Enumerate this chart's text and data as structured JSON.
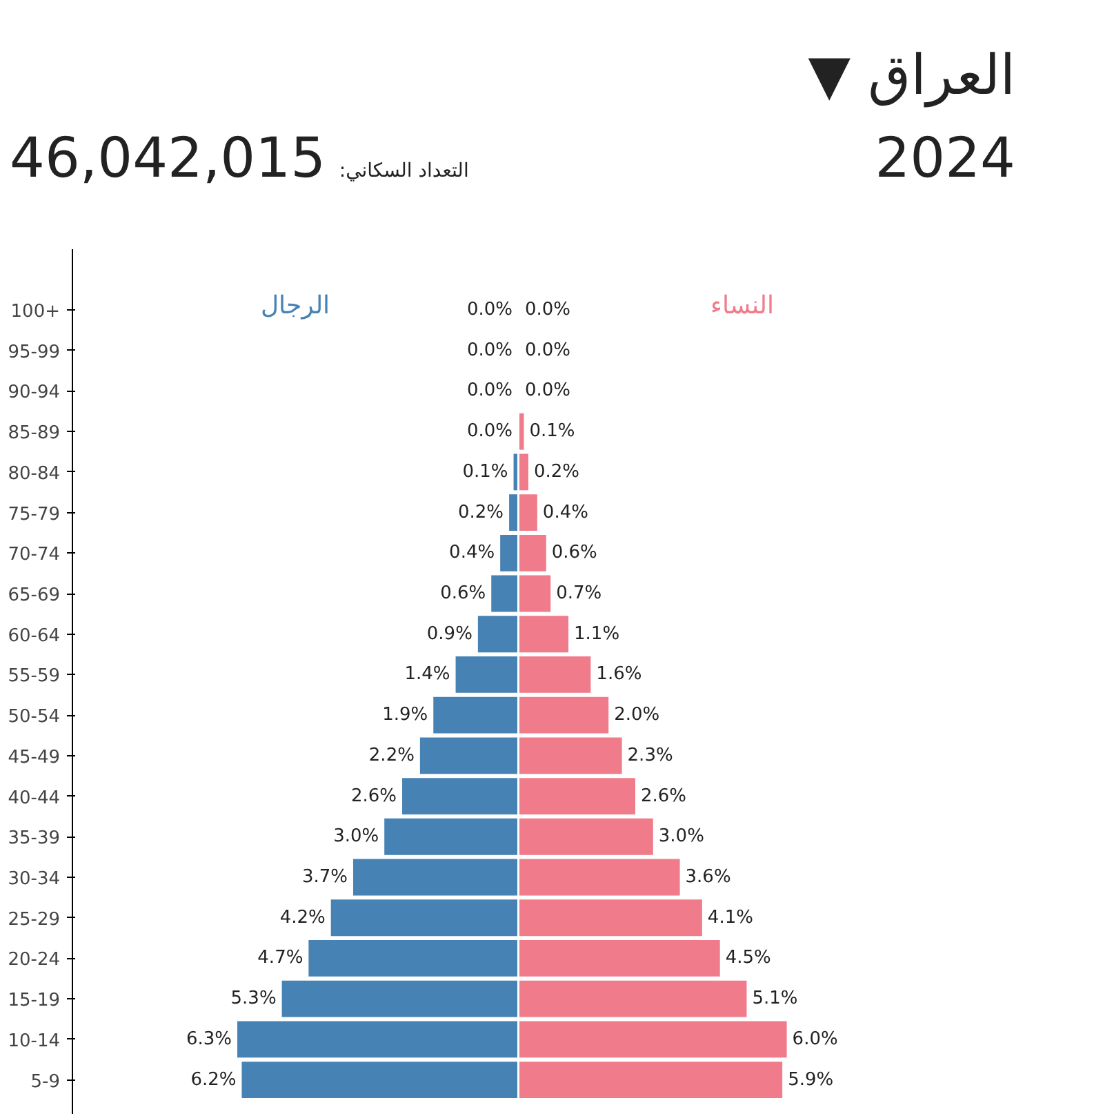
{
  "chart_data": [
    {
      "type": "bar",
      "orientation": "horizontal",
      "annotations": [
        "التعداد السكاني: 46,042,015"
      ],
      "categories": [
        "100+",
        "95-99",
        "90-94",
        "85-89",
        "80-84",
        "75-79",
        "70-74",
        "65-69",
        "60-64",
        "55-59",
        "50-54",
        "45-49",
        "40-44",
        "35-39",
        "30-34",
        "25-29",
        "20-24",
        "15-19",
        "10-14",
        "5-9"
      ],
      "series": [
        {
          "name": "الرجال",
          "color": "#4682b4",
          "values": [
            0.0,
            0.0,
            0.0,
            0.0,
            0.1,
            0.2,
            0.4,
            0.6,
            0.9,
            1.4,
            1.9,
            2.2,
            2.6,
            3.0,
            3.7,
            4.2,
            4.7,
            5.3,
            6.3,
            6.2
          ],
          "value_labels": [
            "0.0%",
            "0.0%",
            "0.0%",
            "0.0%",
            "0.1%",
            "0.2%",
            "0.4%",
            "0.6%",
            "0.9%",
            "1.4%",
            "1.9%",
            "2.2%",
            "2.6%",
            "3.0%",
            "3.7%",
            "4.2%",
            "4.7%",
            "5.3%",
            "6.3%",
            "6.2%"
          ]
        }
      ],
      "tick_labels": "y"
    },
    {
      "type": "bar",
      "orientation": "horizontal",
      "title": "العراق ▼",
      "annotations": [
        "2024"
      ],
      "series": [
        {
          "name": "النساء",
          "color": "#f07b8a",
          "values": [
            0.0,
            0.0,
            0.0,
            0.1,
            0.2,
            0.4,
            0.6,
            0.7,
            1.1,
            1.6,
            2.0,
            2.3,
            2.6,
            3.0,
            3.6,
            4.1,
            4.5,
            5.1,
            6.0,
            5.9
          ],
          "value_labels": [
            "0.0%",
            "0.0%",
            "0.0%",
            "0.1%",
            "0.2%",
            "0.4%",
            "0.6%",
            "0.7%",
            "1.1%",
            "1.6%",
            "2.0%",
            "2.3%",
            "2.6%",
            "3.0%",
            "3.6%",
            "4.1%",
            "4.5%",
            "5.1%",
            "6.0%",
            "5.9%"
          ]
        }
      ],
      "tick_labels": false
    }
  ]
}
